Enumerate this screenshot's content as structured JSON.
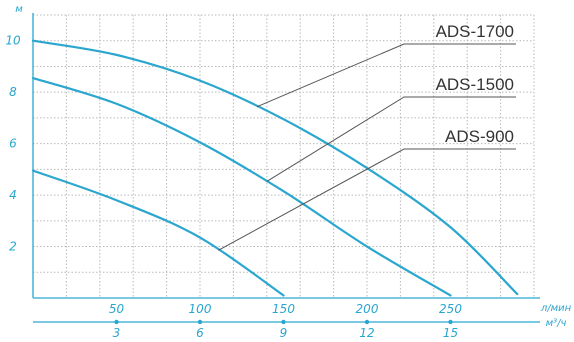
{
  "chart_data": {
    "type": "line",
    "ylabel": "м",
    "xlabel": "л/мин",
    "x2label": "м³/ч",
    "xlim": [
      0,
      300
    ],
    "ylim": [
      0,
      11
    ],
    "yticks": [
      2,
      4,
      6,
      8,
      10
    ],
    "xticks": [
      50,
      100,
      150,
      200,
      250
    ],
    "x2ticks": [
      3,
      6,
      9,
      12,
      15
    ],
    "grid": true,
    "colors": {
      "curve": "#2aa6cf",
      "axis": "#2aa6cf",
      "grid": "#b9b9b9",
      "leader": "#555555",
      "text": "#333333"
    },
    "series": [
      {
        "name": "ADS-1700",
        "x": [
          0,
          50,
          100,
          150,
          200,
          250,
          290
        ],
        "y": [
          10,
          9.45,
          8.45,
          6.95,
          5.05,
          2.75,
          0.15
        ],
        "label_at": 134
      },
      {
        "name": "ADS-1500",
        "x": [
          0,
          50,
          100,
          150,
          200,
          250
        ],
        "y": [
          8.55,
          7.55,
          6.05,
          4.15,
          2.0,
          0.1
        ],
        "label_at": 140
      },
      {
        "name": "ADS-900",
        "x": [
          0,
          50,
          100,
          150
        ],
        "y": [
          4.95,
          3.8,
          2.35,
          0.1
        ],
        "label_at": 111
      }
    ]
  }
}
